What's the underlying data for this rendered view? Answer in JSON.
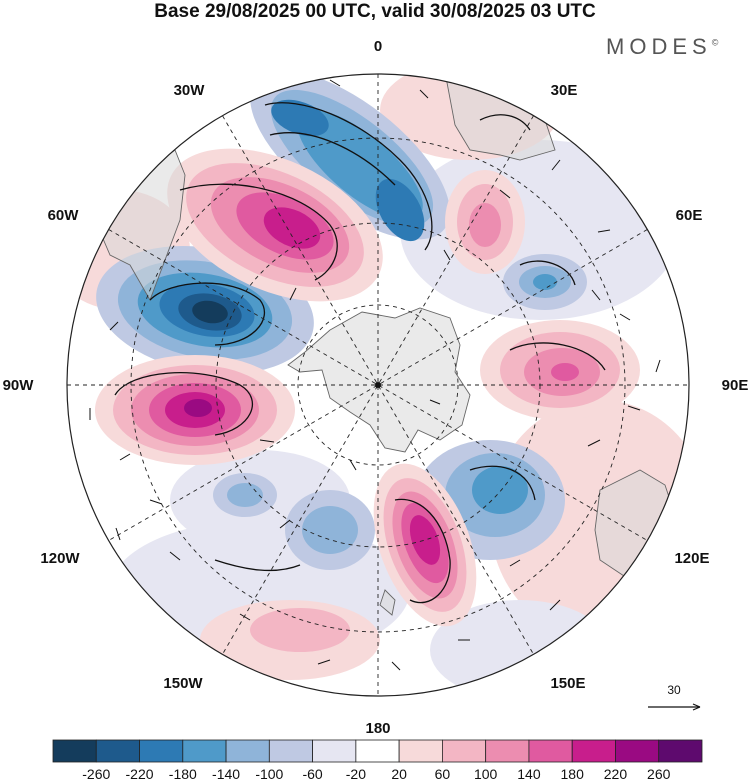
{
  "header": {
    "title": "Base 29/08/2025 00 UTC, valid 30/08/2025 03 UTC",
    "brand": "MODES",
    "brand_mark": "©"
  },
  "map": {
    "projection": "south polar stereographic",
    "longitude_labels": {
      "top": "0",
      "top_right": "30E",
      "upper_right": "60E",
      "right": "90E",
      "lower_right": "120E",
      "bottom_right": "150E",
      "bottom": "180",
      "bottom_left": "150W",
      "lower_left": "120W",
      "left": "90W",
      "upper_left": "60W",
      "top_left": "30W"
    },
    "reference_vector_label": "30"
  },
  "colorbar": {
    "colors": [
      "#143c5c",
      "#1e5a8c",
      "#2d7ab4",
      "#4f9ac9",
      "#8fb4d9",
      "#bfc9e3",
      "#e6e6f2",
      "#ffffff",
      "#f7dada",
      "#f3b6c4",
      "#ec8db0",
      "#e05aa0",
      "#c81e8c",
      "#9a0a82",
      "#5e0a6e"
    ],
    "labels": [
      "-260",
      "-220",
      "-180",
      "-140",
      "-100",
      "-60",
      "-20",
      "20",
      "60",
      "100",
      "140",
      "180",
      "220",
      "260"
    ]
  }
}
